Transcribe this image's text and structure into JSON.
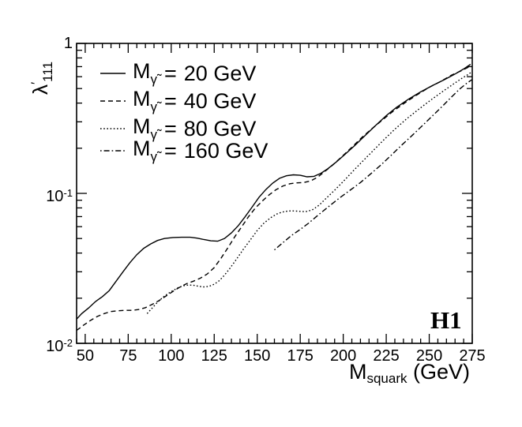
{
  "figure": {
    "experiment_label": "H1",
    "background_color": "#ffffff",
    "line_color": "#000000",
    "y_axis": {
      "lambda": "λ",
      "prime": "′",
      "subscript": "111"
    },
    "x_axis": {
      "main": "M",
      "subscript": "squark",
      "unit": " (GeV)"
    }
  },
  "legend": {
    "items": [
      {
        "sym": "M",
        "sym_sub": "γ̃",
        "eq": "=",
        "value": "20 GeV",
        "style": "solid"
      },
      {
        "sym": "M",
        "sym_sub": "γ̃",
        "eq": "=",
        "value": "40 GeV",
        "style": "dashed"
      },
      {
        "sym": "M",
        "sym_sub": "γ̃",
        "eq": "=",
        "value": "80 GeV",
        "style": "dotted"
      },
      {
        "sym": "M",
        "sym_sub": "γ̃",
        "eq": "=",
        "value": "160 GeV",
        "style": "dashdot"
      }
    ]
  },
  "chart_data": {
    "type": "line",
    "title": "",
    "xlabel": "M_squark (GeV)",
    "ylabel": "lambda'_111",
    "xlim": [
      45,
      275
    ],
    "ylim": [
      0.01,
      1
    ],
    "yscale": "log",
    "grid": false,
    "legend_position": "top-left-inside",
    "xticks_major": [
      50,
      75,
      100,
      125,
      150,
      175,
      200,
      225,
      250,
      275
    ],
    "xtick_minor_step": 5,
    "ytick_labels": [
      {
        "value": 1,
        "base": "1",
        "exp": ""
      },
      {
        "value": 0.1,
        "base": "10",
        "exp": "-1"
      },
      {
        "value": 0.01,
        "base": "10",
        "exp": "-2"
      }
    ],
    "series": [
      {
        "name": "Mgamma 20 GeV",
        "style": "solid",
        "color": "#000000",
        "points": [
          [
            45,
            0.0145
          ],
          [
            48,
            0.0158
          ],
          [
            52,
            0.0172
          ],
          [
            56,
            0.019
          ],
          [
            60,
            0.0205
          ],
          [
            64,
            0.0225
          ],
          [
            68,
            0.026
          ],
          [
            72,
            0.03
          ],
          [
            76,
            0.0345
          ],
          [
            80,
            0.039
          ],
          [
            84,
            0.043
          ],
          [
            88,
            0.046
          ],
          [
            92,
            0.0485
          ],
          [
            96,
            0.05
          ],
          [
            101,
            0.0508
          ],
          [
            106,
            0.051
          ],
          [
            111,
            0.051
          ],
          [
            115,
            0.0503
          ],
          [
            119,
            0.0492
          ],
          [
            123,
            0.0483
          ],
          [
            127,
            0.048
          ],
          [
            131,
            0.05
          ],
          [
            135,
            0.0545
          ],
          [
            139,
            0.061
          ],
          [
            143,
            0.07
          ],
          [
            147,
            0.081
          ],
          [
            151,
            0.094
          ],
          [
            155,
            0.106
          ],
          [
            159,
            0.117
          ],
          [
            163,
            0.126
          ],
          [
            167,
            0.131
          ],
          [
            171,
            0.133
          ],
          [
            175,
            0.132
          ],
          [
            179,
            0.129
          ],
          [
            183,
            0.13
          ],
          [
            187,
            0.136
          ],
          [
            191,
            0.146
          ],
          [
            196,
            0.162
          ],
          [
            201,
            0.182
          ],
          [
            207,
            0.21
          ],
          [
            213,
            0.245
          ],
          [
            219,
            0.285
          ],
          [
            225,
            0.33
          ],
          [
            231,
            0.375
          ],
          [
            238,
            0.425
          ],
          [
            245,
            0.475
          ],
          [
            252,
            0.525
          ],
          [
            259,
            0.575
          ],
          [
            265,
            0.625
          ],
          [
            270,
            0.675
          ],
          [
            274,
            0.725
          ]
        ]
      },
      {
        "name": "Mgamma 40 GeV",
        "style": "dashed",
        "color": "#000000",
        "points": [
          [
            45,
            0.0122
          ],
          [
            49,
            0.0132
          ],
          [
            53,
            0.0142
          ],
          [
            57,
            0.0151
          ],
          [
            61,
            0.0158
          ],
          [
            65,
            0.0163
          ],
          [
            69,
            0.0165
          ],
          [
            73,
            0.0166
          ],
          [
            77,
            0.0166
          ],
          [
            81,
            0.0168
          ],
          [
            85,
            0.0173
          ],
          [
            89,
            0.0182
          ],
          [
            93,
            0.0193
          ],
          [
            97,
            0.0207
          ],
          [
            101,
            0.0222
          ],
          [
            105,
            0.0237
          ],
          [
            109,
            0.025
          ],
          [
            113,
            0.026
          ],
          [
            117,
            0.0272
          ],
          [
            121,
            0.029
          ],
          [
            125,
            0.032
          ],
          [
            129,
            0.037
          ],
          [
            133,
            0.0435
          ],
          [
            137,
            0.0515
          ],
          [
            141,
            0.06
          ],
          [
            145,
            0.07
          ],
          [
            149,
            0.08
          ],
          [
            153,
            0.089
          ],
          [
            157,
            0.098
          ],
          [
            161,
            0.106
          ],
          [
            165,
            0.112
          ],
          [
            169,
            0.116
          ],
          [
            173,
            0.1175
          ],
          [
            177,
            0.118
          ],
          [
            181,
            0.121
          ],
          [
            185,
            0.128
          ],
          [
            189,
            0.139
          ],
          [
            194,
            0.155
          ],
          [
            199,
            0.175
          ],
          [
            205,
            0.203
          ],
          [
            211,
            0.237
          ],
          [
            217,
            0.272
          ],
          [
            223,
            0.31
          ],
          [
            229,
            0.353
          ],
          [
            236,
            0.403
          ],
          [
            243,
            0.455
          ],
          [
            250,
            0.51
          ],
          [
            257,
            0.56
          ],
          [
            263,
            0.615
          ],
          [
            269,
            0.66
          ],
          [
            274,
            0.705
          ]
        ]
      },
      {
        "name": "Mgamma 80 GeV",
        "style": "dotted",
        "color": "#000000",
        "points": [
          [
            86,
            0.0158
          ],
          [
            89,
            0.0172
          ],
          [
            92,
            0.0188
          ],
          [
            95,
            0.0202
          ],
          [
            98,
            0.0214
          ],
          [
            101,
            0.0225
          ],
          [
            104,
            0.0235
          ],
          [
            107,
            0.0242
          ],
          [
            110,
            0.0245
          ],
          [
            113,
            0.0244
          ],
          [
            116,
            0.024
          ],
          [
            119,
            0.0238
          ],
          [
            122,
            0.024
          ],
          [
            125,
            0.0248
          ],
          [
            128,
            0.0262
          ],
          [
            131,
            0.0285
          ],
          [
            134,
            0.0315
          ],
          [
            138,
            0.0365
          ],
          [
            142,
            0.0425
          ],
          [
            146,
            0.049
          ],
          [
            150,
            0.0565
          ],
          [
            154,
            0.0635
          ],
          [
            158,
            0.069
          ],
          [
            162,
            0.0735
          ],
          [
            166,
            0.0758
          ],
          [
            170,
            0.0765
          ],
          [
            174,
            0.076
          ],
          [
            178,
            0.0755
          ],
          [
            182,
            0.0775
          ],
          [
            186,
            0.0835
          ],
          [
            190,
            0.0925
          ],
          [
            195,
            0.105
          ],
          [
            200,
            0.12
          ],
          [
            206,
            0.142
          ],
          [
            212,
            0.167
          ],
          [
            218,
            0.196
          ],
          [
            224,
            0.23
          ],
          [
            230,
            0.268
          ],
          [
            237,
            0.315
          ],
          [
            244,
            0.365
          ],
          [
            251,
            0.42
          ],
          [
            258,
            0.48
          ],
          [
            264,
            0.535
          ],
          [
            269,
            0.585
          ],
          [
            273,
            0.625
          ],
          [
            275,
            0.65
          ]
        ]
      },
      {
        "name": "Mgamma 160 GeV",
        "style": "dashdot",
        "color": "#000000",
        "points": [
          [
            160,
            0.042
          ],
          [
            165,
            0.047
          ],
          [
            170,
            0.0525
          ],
          [
            175,
            0.0575
          ],
          [
            180,
            0.0635
          ],
          [
            186,
            0.0725
          ],
          [
            192,
            0.0825
          ],
          [
            198,
            0.0935
          ],
          [
            204,
            0.105
          ],
          [
            210,
            0.118
          ],
          [
            216,
            0.135
          ],
          [
            222,
            0.155
          ],
          [
            228,
            0.18
          ],
          [
            234,
            0.21
          ],
          [
            240,
            0.243
          ],
          [
            246,
            0.283
          ],
          [
            252,
            0.33
          ],
          [
            258,
            0.385
          ],
          [
            263,
            0.44
          ],
          [
            268,
            0.5
          ],
          [
            272,
            0.545
          ],
          [
            275,
            0.575
          ]
        ]
      }
    ]
  }
}
